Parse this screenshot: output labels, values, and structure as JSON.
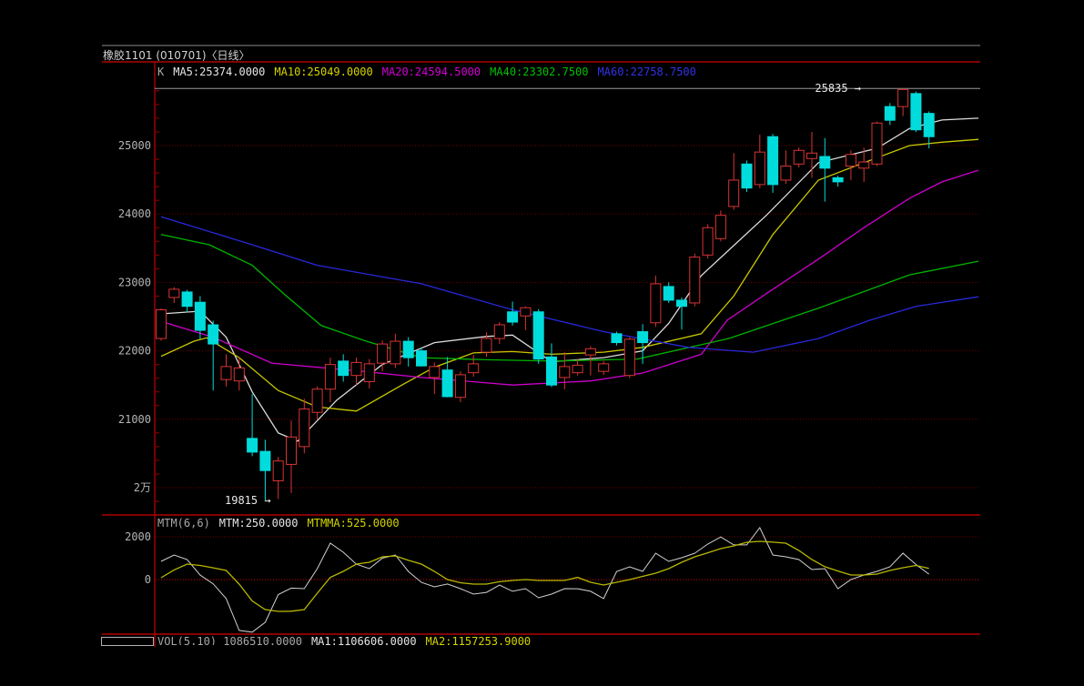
{
  "window": {
    "title": "橡胶1101 (010701)〈日线〉"
  },
  "colors": {
    "background": "#000000",
    "frame_red": "#b00000",
    "axis_red": "#a00000",
    "grid_dark_red": "#6e0000",
    "grid_zero_red": "#d40000",
    "border_gray": "#8c8c8c",
    "label_gray": "#b4b4b4",
    "up_candle": "#d83434",
    "down_candle": "#00dcdc",
    "ma5": "#dcdcdc",
    "ma10": "#c8c800",
    "ma20": "#cc00cc",
    "ma40": "#00b400",
    "ma60": "#2828dc",
    "mtm_line": "#d0d0d0",
    "mtmma_line": "#b8b800",
    "high_line": "#989898",
    "annotation_text": "#e8e8e8"
  },
  "main_indicator": {
    "prefix": {
      "text": "K",
      "color": "#a8a8a8"
    },
    "items": [
      {
        "text": "MA5:25374.0000",
        "color": "#e6e6e6"
      },
      {
        "text": "MA10:25049.0000",
        "color": "#d4d400"
      },
      {
        "text": "MA20:24594.5000",
        "color": "#d400d4"
      },
      {
        "text": "MA40:23302.7500",
        "color": "#00c000"
      },
      {
        "text": "MA60:22758.7500",
        "color": "#3232e6"
      }
    ]
  },
  "mtm_panel": {
    "header": [
      {
        "text": "MTM(6,6)",
        "color": "#a8a8a8"
      },
      {
        "text": "MTM:250.0000",
        "color": "#e6e6e6"
      },
      {
        "text": "MTMMA:525.0000",
        "color": "#d4d400"
      }
    ],
    "axis_labels": [
      {
        "value": 2000,
        "label": "2000"
      },
      {
        "value": 0,
        "label": "0"
      }
    ]
  },
  "vol_panel": {
    "header": [
      {
        "text": "VOL(5,10) 1086510.0000",
        "color": "#a8a8a8"
      },
      {
        "text": "MA1:1106606.0000",
        "color": "#e6e6e6"
      },
      {
        "text": "MA2:1157253.9000",
        "color": "#d4d400"
      }
    ]
  },
  "chart_data": {
    "type": "candlestick",
    "title": "橡胶1101 (010701) 日线",
    "legend_position": "top-left-overlay",
    "grid": "dotted-horizontal",
    "price_axis": {
      "min": 19600,
      "max": 25900,
      "labels": [
        {
          "price": 25000,
          "label": "25000"
        },
        {
          "price": 24000,
          "label": "24000"
        },
        {
          "price": 23000,
          "label": "23000"
        },
        {
          "price": 22000,
          "label": "22000"
        },
        {
          "price": 21000,
          "label": "21000"
        },
        {
          "price": 20000,
          "label": "2万"
        }
      ]
    },
    "annotations": {
      "high": {
        "label": "25835 →",
        "price": 25835,
        "index": 57
      },
      "low": {
        "label": "19815 →",
        "price": 19815,
        "index": 8
      }
    },
    "candles": [
      [
        22180,
        22620,
        22150,
        22600
      ],
      [
        22780,
        22930,
        22700,
        22900
      ],
      [
        22860,
        22890,
        22560,
        22650
      ],
      [
        22710,
        22800,
        22170,
        22300
      ],
      [
        22380,
        22440,
        21420,
        22100
      ],
      [
        21580,
        21950,
        21480,
        21770
      ],
      [
        21560,
        21900,
        21420,
        21750
      ],
      [
        20720,
        21370,
        20460,
        20520
      ],
      [
        20530,
        20700,
        19815,
        20250
      ],
      [
        20100,
        20450,
        19835,
        20390
      ],
      [
        20340,
        20980,
        19920,
        20740
      ],
      [
        20600,
        21300,
        20500,
        21150
      ],
      [
        21100,
        21480,
        21000,
        21440
      ],
      [
        21440,
        21900,
        21250,
        21800
      ],
      [
        21850,
        21950,
        21550,
        21640
      ],
      [
        21640,
        21900,
        21500,
        21830
      ],
      [
        21550,
        21880,
        21450,
        21810
      ],
      [
        21820,
        22150,
        21700,
        22100
      ],
      [
        21810,
        22250,
        21750,
        22140
      ],
      [
        22140,
        22200,
        21770,
        21900
      ],
      [
        22000,
        22050,
        21770,
        21780
      ],
      [
        21610,
        21830,
        21370,
        21770
      ],
      [
        21720,
        21910,
        21320,
        21330
      ],
      [
        21320,
        21700,
        21250,
        21650
      ],
      [
        21680,
        21940,
        21620,
        21810
      ],
      [
        21980,
        22270,
        21910,
        22180
      ],
      [
        22180,
        22420,
        22100,
        22380
      ],
      [
        22570,
        22720,
        22370,
        22420
      ],
      [
        22510,
        22650,
        22300,
        22630
      ],
      [
        22570,
        22610,
        21810,
        21880
      ],
      [
        21910,
        22110,
        21470,
        21500
      ],
      [
        21610,
        21980,
        21440,
        21770
      ],
      [
        21680,
        21880,
        21640,
        21790
      ],
      [
        21940,
        22070,
        21640,
        22030
      ],
      [
        21700,
        21850,
        21650,
        21810
      ],
      [
        22250,
        22280,
        22080,
        22120
      ],
      [
        21640,
        22200,
        21600,
        22170
      ],
      [
        22280,
        22390,
        21810,
        22120
      ],
      [
        22410,
        23100,
        22350,
        22980
      ],
      [
        22940,
        23000,
        22700,
        22740
      ],
      [
        22740,
        22780,
        22310,
        22650
      ],
      [
        22700,
        23420,
        22650,
        23370
      ],
      [
        23400,
        23850,
        23350,
        23800
      ],
      [
        23640,
        24050,
        23600,
        23980
      ],
      [
        24110,
        24890,
        24060,
        24495
      ],
      [
        24730,
        24780,
        24320,
        24380
      ],
      [
        24430,
        25160,
        24380,
        24905
      ],
      [
        25130,
        25170,
        24310,
        24430
      ],
      [
        24495,
        24930,
        24440,
        24700
      ],
      [
        24730,
        24970,
        24680,
        24930
      ],
      [
        24810,
        25200,
        24530,
        24890
      ],
      [
        24840,
        25110,
        24180,
        24670
      ],
      [
        24530,
        24560,
        24400,
        24470
      ],
      [
        24700,
        24930,
        24495,
        24870
      ],
      [
        24670,
        24970,
        24470,
        24760
      ],
      [
        24730,
        25350,
        24700,
        25330
      ],
      [
        25570,
        25620,
        25300,
        25370
      ],
      [
        25570,
        25835,
        25430,
        25820
      ],
      [
        25760,
        25790,
        25200,
        25230
      ],
      [
        25470,
        25500,
        24960,
        25130
      ]
    ],
    "ma_lines": [
      {
        "name": "MA5",
        "color": "#dcdcdc",
        "points": [
          [
            0,
            22540
          ],
          [
            3,
            22580
          ],
          [
            5,
            22200
          ],
          [
            7,
            21400
          ],
          [
            9,
            20800
          ],
          [
            10.5,
            20680
          ],
          [
            13.5,
            21280
          ],
          [
            17,
            21800
          ],
          [
            21,
            22120
          ],
          [
            25,
            22210
          ],
          [
            27,
            22230
          ],
          [
            30,
            21840
          ],
          [
            34,
            21900
          ],
          [
            37,
            22000
          ],
          [
            39,
            22400
          ],
          [
            41.5,
            23100
          ],
          [
            46.5,
            23980
          ],
          [
            50.5,
            24750
          ],
          [
            55,
            24960
          ],
          [
            57.5,
            25250
          ],
          [
            60,
            25374
          ],
          [
            62.8,
            25400
          ]
        ]
      },
      {
        "name": "MA10",
        "color": "#c8c800",
        "points": [
          [
            0,
            21920
          ],
          [
            2.5,
            22140
          ],
          [
            3.5,
            22190
          ],
          [
            6,
            21900
          ],
          [
            9,
            21420
          ],
          [
            12,
            21180
          ],
          [
            15,
            21120
          ],
          [
            18.5,
            21500
          ],
          [
            21,
            21760
          ],
          [
            24,
            21970
          ],
          [
            27,
            21990
          ],
          [
            30,
            21950
          ],
          [
            34,
            21980
          ],
          [
            37,
            22050
          ],
          [
            41.5,
            22250
          ],
          [
            44,
            22800
          ],
          [
            47,
            23700
          ],
          [
            50.5,
            24495
          ],
          [
            54,
            24750
          ],
          [
            57.5,
            25000
          ],
          [
            60,
            25049
          ],
          [
            62.8,
            25090
          ]
        ]
      },
      {
        "name": "MA20",
        "color": "#cc00cc",
        "points": [
          [
            0,
            22430
          ],
          [
            4,
            22200
          ],
          [
            8.5,
            21820
          ],
          [
            15.5,
            21700
          ],
          [
            20,
            21610
          ],
          [
            27,
            21500
          ],
          [
            33,
            21560
          ],
          [
            37,
            21675
          ],
          [
            41.5,
            21950
          ],
          [
            43.5,
            22450
          ],
          [
            47,
            22900
          ],
          [
            50.5,
            23340
          ],
          [
            54,
            23800
          ],
          [
            57.5,
            24230
          ],
          [
            60,
            24470
          ],
          [
            62.8,
            24640
          ]
        ]
      },
      {
        "name": "MA40",
        "color": "#00b400",
        "points": [
          [
            0,
            23700
          ],
          [
            3.7,
            23550
          ],
          [
            7,
            23250
          ],
          [
            9.5,
            22820
          ],
          [
            12.3,
            22370
          ],
          [
            15.6,
            22150
          ],
          [
            20,
            21900
          ],
          [
            25,
            21870
          ],
          [
            30,
            21850
          ],
          [
            36.6,
            21880
          ],
          [
            43.6,
            22180
          ],
          [
            50.6,
            22630
          ],
          [
            57.5,
            23110
          ],
          [
            62.8,
            23310
          ]
        ]
      },
      {
        "name": "MA60",
        "color": "#2828dc",
        "points": [
          [
            0,
            23960
          ],
          [
            6.5,
            23580
          ],
          [
            12,
            23250
          ],
          [
            20,
            22980
          ],
          [
            27,
            22600
          ],
          [
            34,
            22280
          ],
          [
            40.5,
            22050
          ],
          [
            45.5,
            21980
          ],
          [
            50.5,
            22180
          ],
          [
            54.5,
            22450
          ],
          [
            58,
            22650
          ],
          [
            62.8,
            22790
          ]
        ]
      }
    ],
    "mtm": {
      "ylim": [
        -2600,
        3000
      ],
      "gridlines": [
        2000,
        0
      ],
      "mtm": [
        850,
        1150,
        935,
        210,
        -200,
        -890,
        -2380,
        -2460,
        -2000,
        -700,
        -400,
        -425,
        510,
        1700,
        1275,
        720,
        510,
        1000,
        1150,
        380,
        -130,
        -340,
        -210,
        -425,
        -680,
        -600,
        -260,
        -550,
        -425,
        -850,
        -680,
        -425,
        -430,
        -550,
        -890,
        380,
        595,
        383,
        1230,
        850,
        1020,
        1230,
        1660,
        1990,
        1620,
        1620,
        2425,
        1150,
        1063,
        935,
        470,
        510,
        -425,
        0,
        213,
        383,
        595,
        1233,
        700,
        250
      ],
      "mtmma": [
        85,
        450,
        723,
        660,
        550,
        425,
        -213,
        -1000,
        -1404,
        -1490,
        -1480,
        -1404,
        -640,
        100,
        383,
        723,
        808,
        1063,
        1105,
        900,
        723,
        383,
        0,
        -150,
        -213,
        -213,
        -100,
        -43,
        0,
        -43,
        -43,
        -43,
        100,
        -128,
        -255,
        -128,
        0,
        150,
        298,
        510,
        808,
        1063,
        1250,
        1447,
        1574,
        1745,
        1787,
        1750,
        1702,
        1362,
        936,
        600,
        400,
        213,
        213,
        255,
        425,
        553,
        660,
        525
      ]
    }
  }
}
